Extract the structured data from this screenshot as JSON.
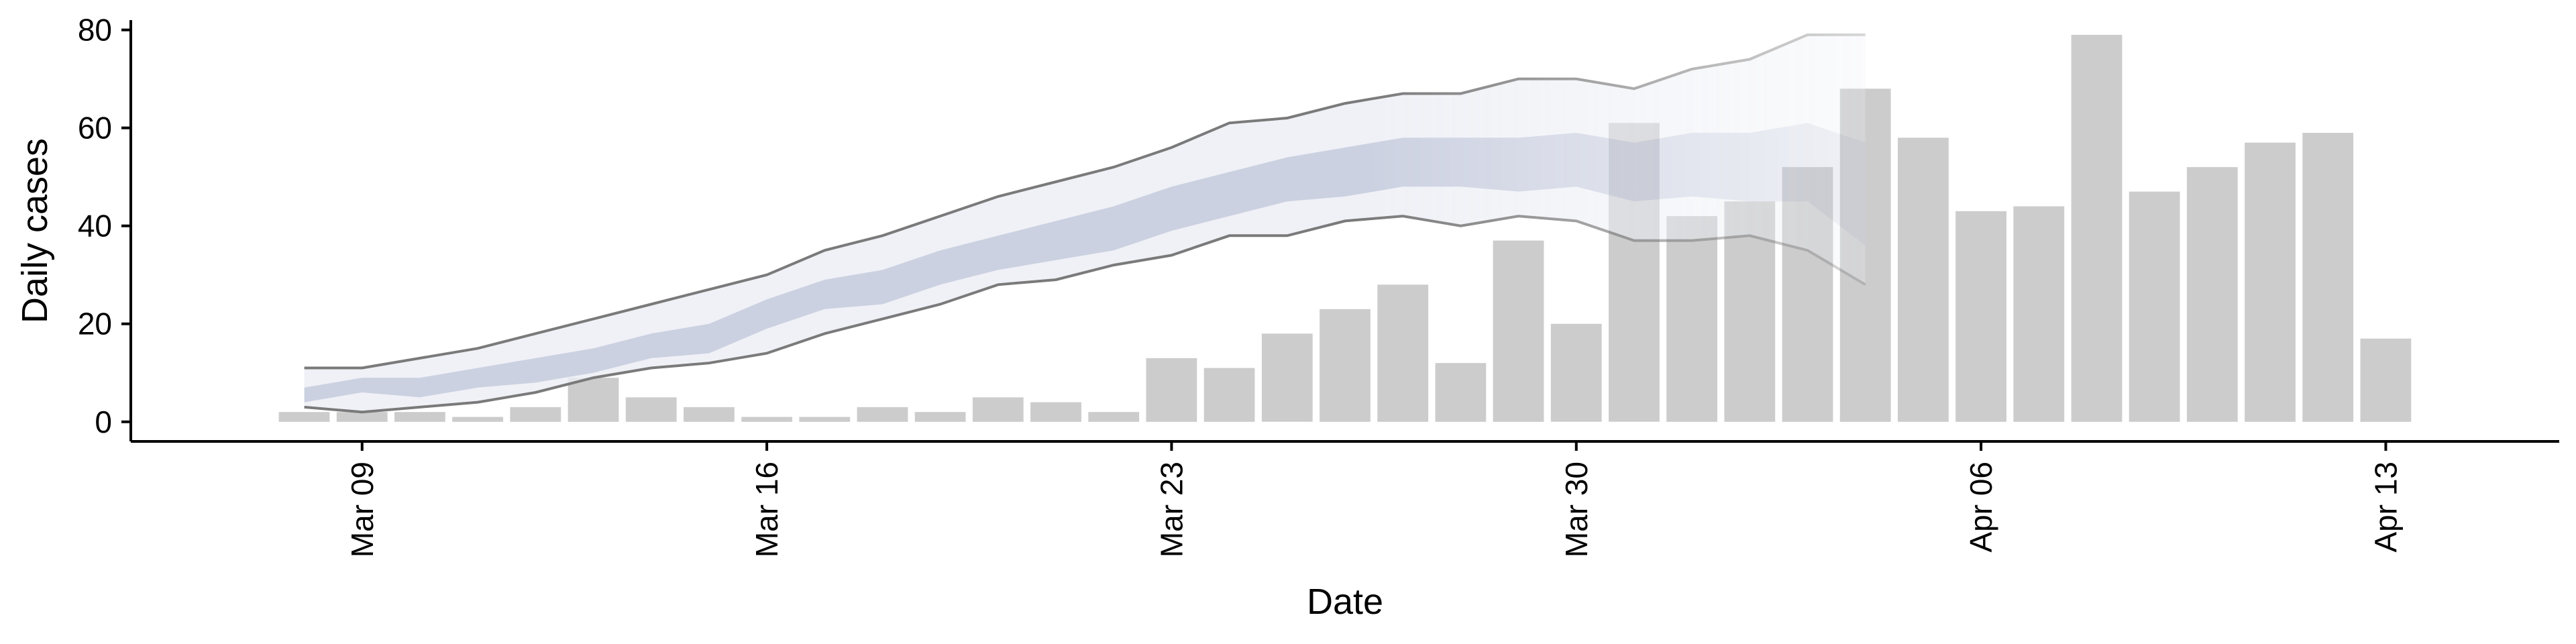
{
  "chart_data": {
    "type": "bar",
    "xlabel": "Date",
    "ylabel": "Daily cases",
    "ylim": [
      -4,
      82
    ],
    "xlim": [
      "2020-03-05",
      "2020-04-16"
    ],
    "x_ticks": [
      {
        "date": "2020-03-09",
        "label": "Mar 09"
      },
      {
        "date": "2020-03-16",
        "label": "Mar 16"
      },
      {
        "date": "2020-03-23",
        "label": "Mar 23"
      },
      {
        "date": "2020-03-30",
        "label": "Mar 30"
      },
      {
        "date": "2020-04-06",
        "label": "Apr 06"
      },
      {
        "date": "2020-04-13",
        "label": "Apr 13"
      }
    ],
    "y_ticks": [
      0,
      20,
      40,
      60,
      80
    ],
    "grid": false,
    "colors": {
      "bars": "#cccccc",
      "outer_band": "#eceef4",
      "inner_band": "#c3c9dc",
      "bound_lines": "#7a7a7a"
    },
    "bars": {
      "x": [
        "2020-03-08",
        "2020-03-09",
        "2020-03-10",
        "2020-03-11",
        "2020-03-12",
        "2020-03-13",
        "2020-03-14",
        "2020-03-15",
        "2020-03-16",
        "2020-03-17",
        "2020-03-18",
        "2020-03-19",
        "2020-03-20",
        "2020-03-21",
        "2020-03-22",
        "2020-03-23",
        "2020-03-24",
        "2020-03-25",
        "2020-03-26",
        "2020-03-27",
        "2020-03-28",
        "2020-03-29",
        "2020-03-30",
        "2020-03-31",
        "2020-04-01",
        "2020-04-02",
        "2020-04-03",
        "2020-04-04",
        "2020-04-05",
        "2020-04-06",
        "2020-04-07",
        "2020-04-08",
        "2020-04-09",
        "2020-04-10",
        "2020-04-11",
        "2020-04-12",
        "2020-04-13"
      ],
      "values": [
        2,
        2,
        2,
        1,
        3,
        9,
        5,
        3,
        1,
        1,
        3,
        2,
        5,
        4,
        2,
        13,
        11,
        18,
        23,
        28,
        12,
        37,
        20,
        61,
        42,
        45,
        52,
        68,
        58,
        43,
        44,
        79,
        47,
        52,
        57,
        59,
        17
      ]
    },
    "forecast": {
      "x": [
        "2020-03-08",
        "2020-03-09",
        "2020-03-10",
        "2020-03-11",
        "2020-03-12",
        "2020-03-13",
        "2020-03-14",
        "2020-03-15",
        "2020-03-16",
        "2020-03-17",
        "2020-03-18",
        "2020-03-19",
        "2020-03-20",
        "2020-03-21",
        "2020-03-22",
        "2020-03-23",
        "2020-03-24",
        "2020-03-25",
        "2020-03-26",
        "2020-03-27",
        "2020-03-28",
        "2020-03-29",
        "2020-03-30",
        "2020-03-31",
        "2020-04-01",
        "2020-04-02",
        "2020-04-03",
        "2020-04-04"
      ],
      "upper_90": [
        11,
        11,
        13,
        15,
        18,
        21,
        24,
        27,
        30,
        35,
        38,
        42,
        46,
        49,
        52,
        56,
        61,
        62,
        65,
        67,
        67,
        70,
        70,
        68,
        72,
        74,
        79,
        79
      ],
      "upper_50": [
        7,
        9,
        9,
        11,
        13,
        15,
        18,
        20,
        25,
        29,
        31,
        35,
        38,
        41,
        44,
        48,
        51,
        54,
        56,
        58,
        58,
        58,
        59,
        57,
        59,
        59,
        61,
        57
      ],
      "lower_50": [
        4,
        6,
        5,
        7,
        8,
        10,
        13,
        14,
        19,
        23,
        24,
        28,
        31,
        33,
        35,
        39,
        42,
        45,
        46,
        48,
        48,
        47,
        48,
        45,
        46,
        45,
        45,
        36
      ],
      "lower_90": [
        3,
        2,
        3,
        4,
        6,
        9,
        11,
        12,
        14,
        18,
        21,
        24,
        28,
        29,
        32,
        34,
        38,
        38,
        41,
        42,
        40,
        42,
        41,
        37,
        37,
        38,
        35,
        28
      ]
    }
  }
}
